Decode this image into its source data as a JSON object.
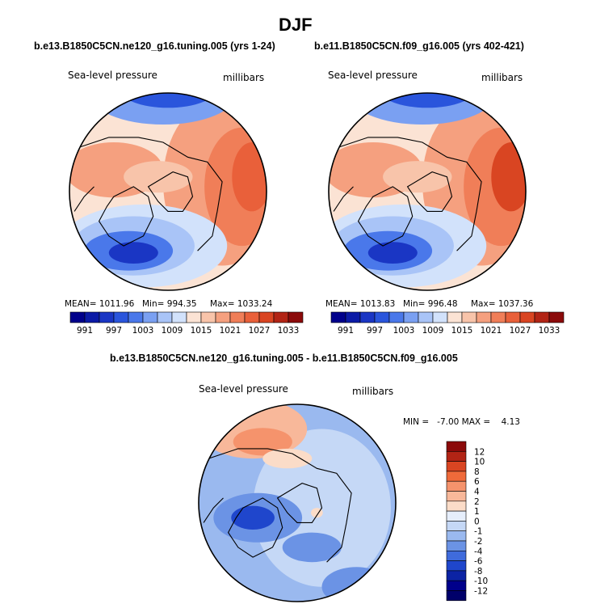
{
  "figure": {
    "season": "DJF",
    "colors": {
      "deep_blue": "#08107a",
      "blue": "#2a5ae0",
      "light_blue": "#9fc0f0",
      "pale_blue": "#dbe8fb",
      "pale_red": "#fbe0d0",
      "light_red": "#f4a07c",
      "red": "#e85a32",
      "dark_red": "#8b0a0a"
    }
  },
  "chart_data": [
    {
      "type": "heatmap",
      "title": "b.e13.B1850C5CN.ne120_g16.tuning.005 (yrs 1-24)",
      "field_label": "Sea-level pressure",
      "units_label": "millibars",
      "mean_text": "MEAN= 1011.96",
      "min_text": "Min= 994.35",
      "max_text": "Max= 1033.24",
      "stats": {
        "mean": 1011.96,
        "min": 994.35,
        "max": 1033.24
      },
      "colorbar": {
        "orientation": "horizontal",
        "tick_labels": [
          "991",
          "997",
          "1003",
          "1009",
          "1015",
          "1021",
          "1027",
          "1033"
        ],
        "levels": [
          988,
          991,
          994,
          997,
          1000,
          1003,
          1006,
          1009,
          1012,
          1015,
          1018,
          1021,
          1024,
          1027,
          1030,
          1033,
          1036
        ],
        "colors": [
          "#00008b",
          "#0b1aa6",
          "#1a36c4",
          "#2a55dc",
          "#4a78ea",
          "#7aa0f2",
          "#a9c4f7",
          "#d2e2fb",
          "#fbe3d4",
          "#f8c4aa",
          "#f5a07f",
          "#f07e58",
          "#e9603a",
          "#d94522",
          "#b22415",
          "#8b0a0a"
        ]
      }
    },
    {
      "type": "heatmap",
      "title": "b.e11.B1850C5CN.f09_g16.005 (yrs 402-421)",
      "field_label": "Sea-level pressure",
      "units_label": "millibars",
      "mean_text": "MEAN= 1013.83",
      "min_text": "Min= 996.48",
      "max_text": "Max= 1037.36",
      "stats": {
        "mean": 1013.83,
        "min": 996.48,
        "max": 1037.36
      },
      "colorbar": {
        "orientation": "horizontal",
        "tick_labels": [
          "991",
          "997",
          "1003",
          "1009",
          "1015",
          "1021",
          "1027",
          "1033"
        ],
        "levels": [
          988,
          991,
          994,
          997,
          1000,
          1003,
          1006,
          1009,
          1012,
          1015,
          1018,
          1021,
          1024,
          1027,
          1030,
          1033,
          1036
        ],
        "colors": [
          "#00008b",
          "#0b1aa6",
          "#1a36c4",
          "#2a55dc",
          "#4a78ea",
          "#7aa0f2",
          "#a9c4f7",
          "#d2e2fb",
          "#fbe3d4",
          "#f8c4aa",
          "#f5a07f",
          "#f07e58",
          "#e9603a",
          "#d94522",
          "#b22415",
          "#8b0a0a"
        ]
      }
    },
    {
      "type": "heatmap",
      "title": "b.e13.B1850C5CN.ne120_g16.tuning.005 - b.e11.B1850C5CN.f09_g16.005",
      "field_label": "Sea-level pressure",
      "units_label": "millibars",
      "minmax_text": "MIN =   -7.00 MAX =    4.13",
      "stats": {
        "min": -7.0,
        "max": 4.13
      },
      "colorbar": {
        "orientation": "vertical",
        "tick_labels": [
          "12",
          "10",
          "8",
          "6",
          "4",
          "2",
          "1",
          "0",
          "-1",
          "-2",
          "-4",
          "-6",
          "-8",
          "-10",
          "-12"
        ],
        "levels": [
          12,
          10,
          8,
          6,
          4,
          2,
          1,
          0,
          -1,
          -2,
          -4,
          -6,
          -8,
          -10,
          -12
        ],
        "colors": [
          "#8b0a0a",
          "#b22415",
          "#d94522",
          "#ef6a3a",
          "#f5936c",
          "#f8b89a",
          "#fbdcc8",
          "#e6eefb",
          "#c5d8f6",
          "#9ab9ef",
          "#6b93e5",
          "#3f6bdc",
          "#1f46cc",
          "#0c23a4",
          "#00008b",
          "#00006a"
        ]
      }
    }
  ]
}
